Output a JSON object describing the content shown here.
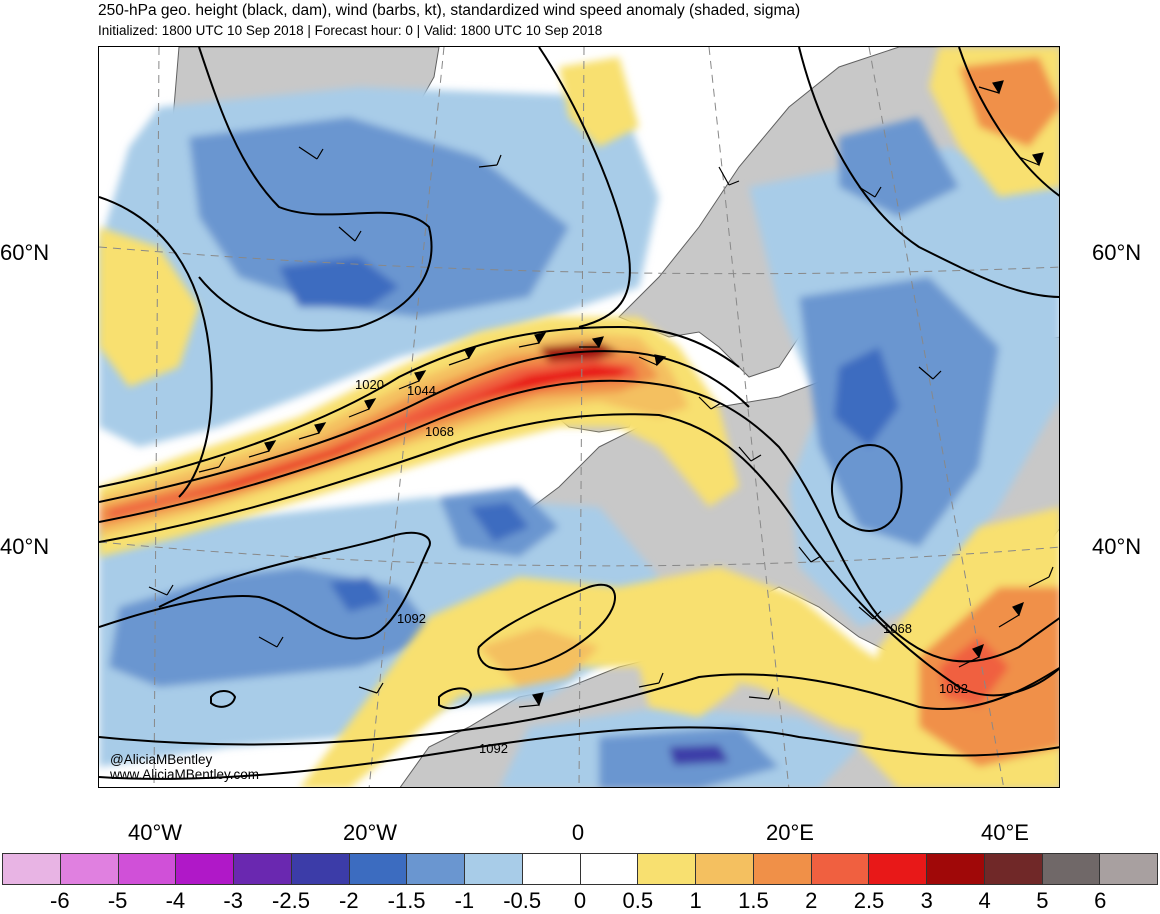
{
  "title": "250-hPa geo. height (black, dam), wind (barbs, kt), standardized wind speed anomaly (shaded, sigma)",
  "subtitle": "Initialized: 1800 UTC 10 Sep 2018 | Forecast hour: 0 | Valid: 1800 UTC 10 Sep 2018",
  "lat_labels": {
    "n60": "60°N",
    "n40": "40°N"
  },
  "lon_labels": [
    "40°W",
    "20°W",
    "0",
    "20°E",
    "40°E"
  ],
  "contour_labels": [
    "1020",
    "1044",
    "1068",
    "1092",
    "1068",
    "1092",
    "1092"
  ],
  "credit": {
    "handle": "@AliciaMBentley",
    "site": "www.AliciaMBentley.com"
  },
  "colorbar": {
    "labels": [
      "-6",
      "-5",
      "-4",
      "-3",
      "-2.5",
      "-2",
      "-1.5",
      "-1",
      "-0.5",
      "0",
      "0.5",
      "1",
      "1.5",
      "2",
      "2.5",
      "3",
      "4",
      "5",
      "6"
    ],
    "colors": [
      "#e8b4e4",
      "#e080e0",
      "#d050d8",
      "#b018c8",
      "#6a28b0",
      "#3c3ca8",
      "#3c6cc0",
      "#6a96d0",
      "#a8cce8",
      "#ffffff",
      "#ffffff",
      "#f8e070",
      "#f4c060",
      "#f09048",
      "#f06040",
      "#e81818",
      "#a00808",
      "#702828",
      "#706868",
      "#a8a0a0"
    ]
  },
  "colors": {
    "land": "#c8c8c8",
    "ocean": "#ffffff",
    "contour": "#000000",
    "coast": "#606060"
  }
}
